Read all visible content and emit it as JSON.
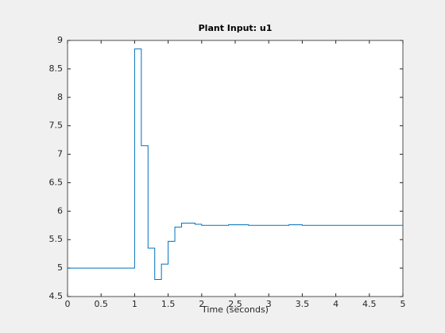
{
  "chart_data": {
    "type": "stairs",
    "title": "Plant Input:  u1",
    "xlabel": "Time (seconds)",
    "x": [
      0,
      1,
      1.1,
      1.2,
      1.3,
      1.4,
      1.5,
      1.6,
      1.7,
      1.9,
      2.0,
      2.4,
      2.7,
      3.3,
      3.5,
      5
    ],
    "series": [
      {
        "color": "#0072bd",
        "values": [
          5,
          8.85,
          7.15,
          5.35,
          4.8,
          5.07,
          5.47,
          5.72,
          5.79,
          5.77,
          5.75,
          5.76,
          5.75,
          5.76,
          5.75,
          5.75
        ]
      }
    ],
    "xlim": [
      0,
      5
    ],
    "xticks": [
      0,
      0.5,
      1,
      1.5,
      2,
      2.5,
      3,
      3.5,
      4,
      4.5,
      5
    ],
    "ylim": [
      4.5,
      9
    ],
    "yticks": [
      4.5,
      5,
      5.5,
      6,
      6.5,
      7,
      7.5,
      8,
      8.5,
      9
    ],
    "grid": false
  }
}
